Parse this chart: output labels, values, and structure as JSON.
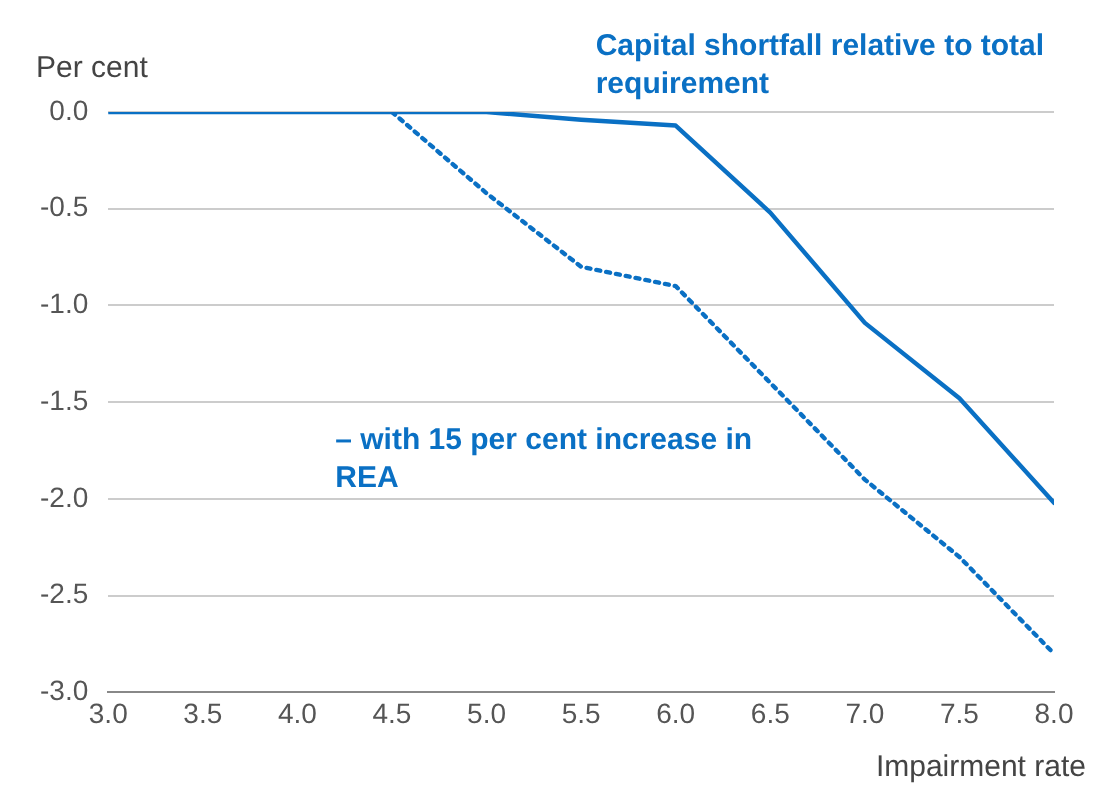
{
  "chart_data": {
    "type": "line",
    "ylabel": "Per cent",
    "xlabel": "Impairment rate",
    "xlim": [
      3,
      8
    ],
    "xticks": [
      {
        "value": 3,
        "label": "3.0"
      },
      {
        "value": 3.5,
        "label": "3.5"
      },
      {
        "value": 4,
        "label": "4.0"
      },
      {
        "value": 4.5,
        "label": "4.5"
      },
      {
        "value": 5,
        "label": "5.0"
      },
      {
        "value": 5.5,
        "label": "5.5"
      },
      {
        "value": 6,
        "label": "6.0"
      },
      {
        "value": 6.5,
        "label": "6.5"
      },
      {
        "value": 7,
        "label": "7.0"
      },
      {
        "value": 7.5,
        "label": "7.5"
      },
      {
        "value": 8,
        "label": "8.0"
      }
    ],
    "ylim": [
      -3,
      0
    ],
    "yticks": [
      {
        "value": -3,
        "label": "-3.0"
      },
      {
        "value": -2.5,
        "label": "-2.5"
      },
      {
        "value": -2,
        "label": "-2.0"
      },
      {
        "value": -1.5,
        "label": "-1.5"
      },
      {
        "value": -1,
        "label": "-1.0"
      },
      {
        "value": -0.5,
        "label": "-0.5"
      },
      {
        "value": 0,
        "label": "0.0"
      }
    ],
    "grid": "y",
    "legend": false,
    "marker": "none",
    "series": [
      {
        "name": "Capital shortfall relative to total requirement",
        "color": "#0a70c4",
        "line_style": "solid",
        "x": [
          3,
          3.5,
          4,
          4.5,
          5,
          5.5,
          6,
          6.5,
          7,
          7.5,
          8
        ],
        "values": [
          0,
          0,
          0,
          0,
          0,
          -0.04,
          -0.07,
          -0.52,
          -1.09,
          -1.48,
          -2.02
        ]
      },
      {
        "name": "– with 15 per cent increase in REA",
        "color": "#0a70c4",
        "line_style": "dotted",
        "x": [
          4.5,
          5,
          5.5,
          6,
          6.5,
          7,
          7.5,
          8
        ],
        "values": [
          0,
          -0.42,
          -0.8,
          -0.9,
          -1.4,
          -1.9,
          -2.3,
          -2.8
        ]
      }
    ]
  }
}
